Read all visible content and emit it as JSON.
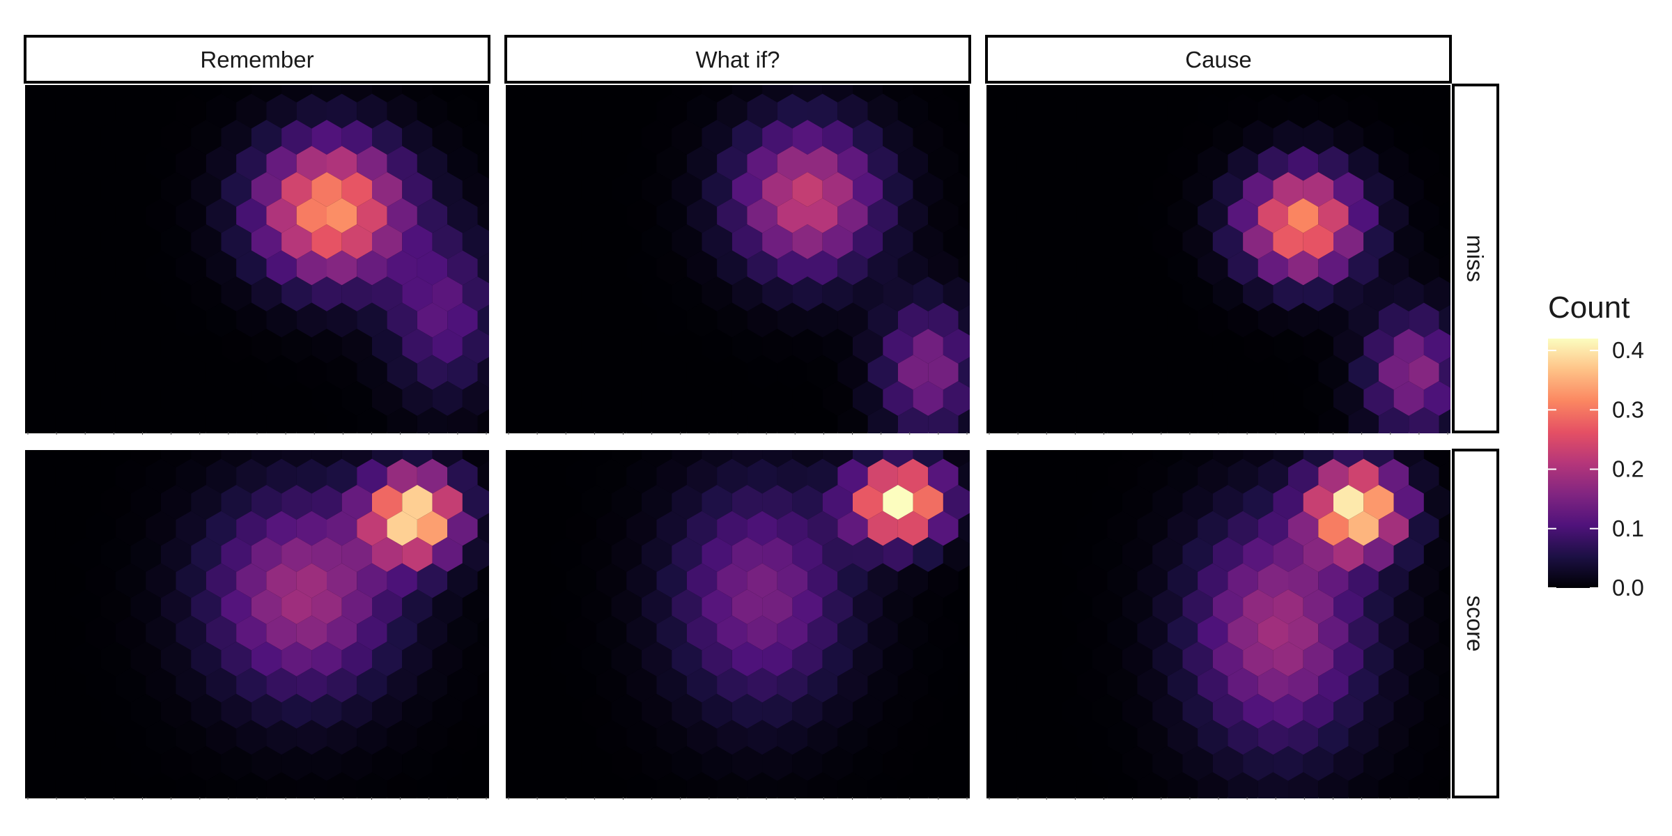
{
  "chart_data": {
    "type": "heatmap",
    "subtype": "faceted hexbin density",
    "columns": [
      "Remember",
      "What if?",
      "Cause"
    ],
    "rows": [
      "miss",
      "score"
    ],
    "legend": {
      "title": "Count",
      "ticks": [
        "0.0",
        "0.1",
        "0.2",
        "0.3",
        "0.4"
      ],
      "tick_values": [
        0.0,
        0.1,
        0.2,
        0.3,
        0.4
      ],
      "range": [
        0,
        0.42
      ],
      "colormap": "magma",
      "placement": "right"
    },
    "grid": false,
    "panels": [
      {
        "row": "miss",
        "column": "Remember",
        "peaks": [
          {
            "x": 0.66,
            "y": 0.36,
            "value": 0.33,
            "sx": 0.11,
            "sy": 0.14
          },
          {
            "x": 0.9,
            "y": 0.66,
            "value": 0.12,
            "sx": 0.08,
            "sy": 0.16
          }
        ]
      },
      {
        "row": "miss",
        "column": "What if?",
        "peaks": [
          {
            "x": 0.65,
            "y": 0.33,
            "value": 0.23,
            "sx": 0.11,
            "sy": 0.15
          },
          {
            "x": 0.91,
            "y": 0.82,
            "value": 0.16,
            "sx": 0.07,
            "sy": 0.13
          }
        ]
      },
      {
        "row": "miss",
        "column": "Cause",
        "peaks": [
          {
            "x": 0.68,
            "y": 0.4,
            "value": 0.32,
            "sx": 0.09,
            "sy": 0.11
          },
          {
            "x": 0.92,
            "y": 0.83,
            "value": 0.17,
            "sx": 0.07,
            "sy": 0.12
          }
        ]
      },
      {
        "row": "score",
        "column": "Remember",
        "peaks": [
          {
            "x": 0.84,
            "y": 0.19,
            "value": 0.4,
            "sx": 0.07,
            "sy": 0.09
          },
          {
            "x": 0.6,
            "y": 0.42,
            "value": 0.19,
            "sx": 0.14,
            "sy": 0.2
          }
        ]
      },
      {
        "row": "score",
        "column": "What if?",
        "peaks": [
          {
            "x": 0.85,
            "y": 0.15,
            "value": 0.42,
            "sx": 0.07,
            "sy": 0.08
          },
          {
            "x": 0.55,
            "y": 0.42,
            "value": 0.15,
            "sx": 0.13,
            "sy": 0.22
          }
        ]
      },
      {
        "row": "score",
        "column": "Cause",
        "peaks": [
          {
            "x": 0.8,
            "y": 0.17,
            "value": 0.4,
            "sx": 0.07,
            "sy": 0.09
          },
          {
            "x": 0.63,
            "y": 0.52,
            "value": 0.19,
            "sx": 0.13,
            "sy": 0.23
          }
        ]
      }
    ]
  }
}
